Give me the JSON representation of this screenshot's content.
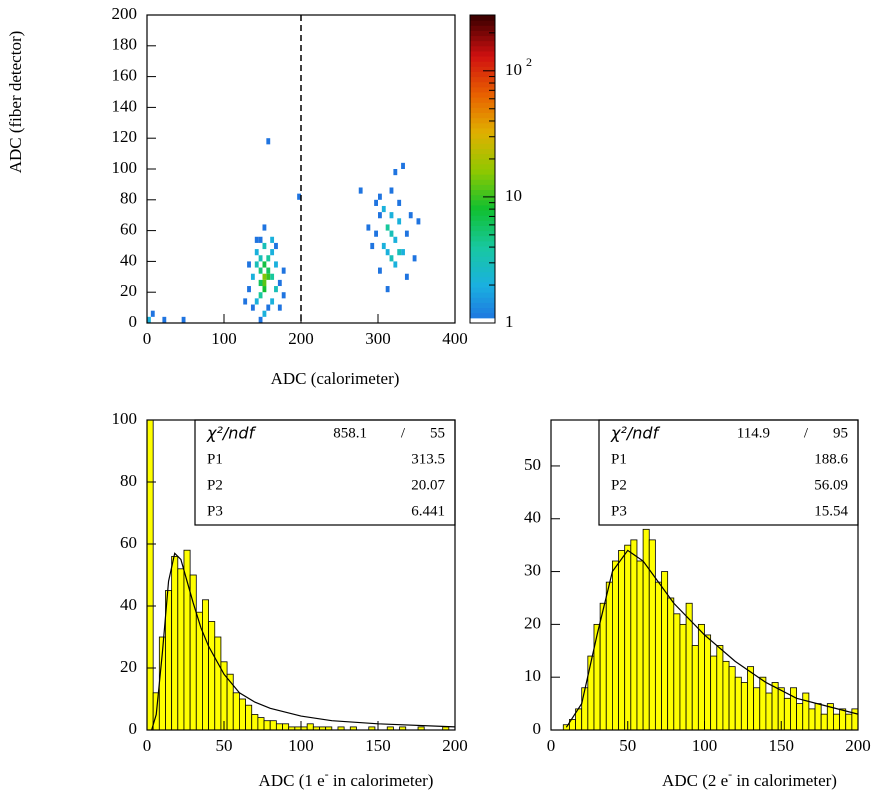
{
  "chart_data": [
    {
      "type": "heatmap",
      "xlabel": "ADC (calorimeter)",
      "ylabel": "ADC (fiber detector)",
      "xlim": [
        0,
        400
      ],
      "ylim": [
        0,
        200
      ],
      "xticks": [
        0,
        100,
        200,
        300,
        400
      ],
      "yticks": [
        0,
        20,
        40,
        60,
        80,
        100,
        120,
        140,
        160,
        180,
        200
      ],
      "xbin": 5,
      "ybin": 4,
      "zlim": [
        1,
        277
      ],
      "zlog": true,
      "zticks": [
        1,
        10,
        {
          "value": 100,
          "label": "10",
          "sup": "2"
        }
      ],
      "palette": [
        "#3a2fd0",
        "#1f6fe0",
        "#1ab0e0",
        "#18c8a0",
        "#10c030",
        "#90c800",
        "#e0b000",
        "#e86000",
        "#d01010",
        "#400000"
      ],
      "vline": 200,
      "cells": [
        [
          135,
          8,
          1
        ],
        [
          140,
          12,
          2
        ],
        [
          145,
          16,
          4
        ],
        [
          150,
          20,
          8
        ],
        [
          150,
          24,
          12
        ],
        [
          145,
          24,
          6
        ],
        [
          155,
          28,
          10
        ],
        [
          150,
          28,
          15
        ],
        [
          145,
          32,
          5
        ],
        [
          155,
          32,
          6
        ],
        [
          150,
          36,
          7
        ],
        [
          145,
          40,
          3
        ],
        [
          155,
          40,
          4
        ],
        [
          140,
          44,
          2
        ],
        [
          160,
          44,
          2
        ],
        [
          150,
          48,
          3
        ],
        [
          145,
          52,
          1
        ],
        [
          160,
          52,
          2
        ],
        [
          130,
          20,
          1
        ],
        [
          135,
          28,
          2
        ],
        [
          165,
          20,
          3
        ],
        [
          160,
          28,
          4
        ],
        [
          165,
          36,
          2
        ],
        [
          170,
          24,
          1
        ],
        [
          175,
          16,
          1
        ],
        [
          140,
          36,
          3
        ],
        [
          160,
          12,
          2
        ],
        [
          155,
          8,
          1
        ],
        [
          150,
          4,
          2
        ],
        [
          145,
          0,
          1
        ],
        [
          170,
          8,
          1
        ],
        [
          150,
          60,
          1
        ],
        [
          155,
          116,
          1
        ],
        [
          140,
          52,
          1
        ],
        [
          130,
          36,
          1
        ],
        [
          165,
          48,
          1
        ],
        [
          175,
          32,
          1
        ],
        [
          125,
          12,
          1
        ],
        [
          310,
          60,
          4
        ],
        [
          315,
          56,
          3
        ],
        [
          320,
          52,
          2
        ],
        [
          305,
          48,
          2
        ],
        [
          325,
          64,
          2
        ],
        [
          300,
          68,
          1
        ],
        [
          330,
          44,
          2
        ],
        [
          315,
          40,
          3
        ],
        [
          320,
          36,
          2
        ],
        [
          310,
          44,
          2
        ],
        [
          295,
          56,
          1
        ],
        [
          335,
          56,
          1
        ],
        [
          305,
          72,
          2
        ],
        [
          325,
          76,
          1
        ],
        [
          315,
          84,
          1
        ],
        [
          300,
          80,
          1
        ],
        [
          290,
          48,
          1
        ],
        [
          340,
          68,
          1
        ],
        [
          285,
          60,
          1
        ],
        [
          345,
          40,
          1
        ],
        [
          320,
          96,
          1
        ],
        [
          330,
          100,
          1
        ],
        [
          275,
          84,
          1
        ],
        [
          350,
          64,
          1
        ],
        [
          300,
          32,
          1
        ],
        [
          310,
          20,
          1
        ],
        [
          335,
          28,
          1
        ],
        [
          295,
          76,
          1
        ],
        [
          325,
          44,
          3
        ],
        [
          315,
          68,
          2
        ],
        [
          0,
          0,
          2
        ],
        [
          5,
          4,
          1
        ],
        [
          20,
          0,
          1
        ],
        [
          45,
          0,
          1
        ],
        [
          195,
          80,
          1
        ]
      ]
    },
    {
      "type": "histogram",
      "xlabel": [
        "ADC (1 e",
        "-",
        " in calorimeter)"
      ],
      "xlim": [
        0,
        200
      ],
      "ylim": [
        0,
        100
      ],
      "xticks": [
        0,
        50,
        100,
        150,
        200
      ],
      "yticks": [
        0,
        20,
        40,
        60,
        80,
        100
      ],
      "color": "#ffff00",
      "bins": [
        0,
        4,
        8,
        12,
        16,
        20,
        24,
        28,
        32,
        36,
        40,
        44,
        48,
        52,
        56,
        60,
        64,
        68,
        72,
        76,
        80,
        84,
        88,
        92,
        96,
        100,
        104,
        108,
        112,
        116,
        120,
        124,
        128,
        132,
        136,
        140,
        144,
        148,
        152,
        156,
        160,
        164,
        168,
        172,
        176,
        180,
        184,
        188,
        192,
        196,
        200
      ],
      "values": [
        100,
        12,
        30,
        45,
        56,
        52,
        58,
        50,
        38,
        42,
        35,
        30,
        22,
        18,
        12,
        10,
        8,
        5,
        4,
        3,
        3,
        2,
        2,
        1,
        1,
        1,
        2,
        1,
        1,
        1,
        0,
        1,
        0,
        1,
        0,
        0,
        1,
        0,
        0,
        1,
        0,
        1,
        0,
        0,
        1,
        0,
        0,
        0,
        1,
        0
      ],
      "fit": {
        "x": [
          3,
          6,
          10,
          14,
          18,
          22,
          26,
          30,
          35,
          40,
          50,
          60,
          70,
          80,
          100,
          120,
          150,
          200
        ],
        "y": [
          0,
          5,
          25,
          48,
          57,
          55,
          48,
          41,
          33,
          27,
          18,
          12,
          9,
          7,
          4.5,
          3,
          2,
          1
        ]
      },
      "stats": [
        [
          "χ²/ndf",
          "858.1",
          "/",
          "55"
        ],
        [
          "P1",
          "313.5"
        ],
        [
          "P2",
          "20.07"
        ],
        [
          "P3",
          "6.441"
        ]
      ]
    },
    {
      "type": "histogram",
      "xlabel": [
        "ADC (2 e",
        "-",
        " in calorimeter)"
      ],
      "xlim": [
        0,
        200
      ],
      "ylim": [
        0,
        58.7
      ],
      "xticks": [
        0,
        50,
        100,
        150,
        200
      ],
      "yticks": [
        0,
        10,
        20,
        30,
        40,
        50
      ],
      "color": "#ffff00",
      "bins": [
        0,
        4,
        8,
        12,
        16,
        20,
        24,
        28,
        32,
        36,
        40,
        44,
        48,
        52,
        56,
        60,
        64,
        68,
        72,
        76,
        80,
        84,
        88,
        92,
        96,
        100,
        104,
        108,
        112,
        116,
        120,
        124,
        128,
        132,
        136,
        140,
        144,
        148,
        152,
        156,
        160,
        164,
        168,
        172,
        176,
        180,
        184,
        188,
        192,
        196,
        200
      ],
      "values": [
        0,
        0,
        1,
        2,
        4,
        8,
        14,
        20,
        24,
        28,
        32,
        34,
        35,
        36,
        32,
        38,
        36,
        28,
        30,
        25,
        22,
        20,
        24,
        16,
        20,
        18,
        14,
        16,
        13,
        12,
        10,
        9,
        12,
        8,
        10,
        7,
        9,
        8,
        6,
        8,
        5,
        7,
        4,
        5,
        3,
        5,
        3,
        4,
        3,
        4
      ],
      "fit": {
        "x": [
          10,
          20,
          30,
          40,
          50,
          60,
          70,
          80,
          100,
          120,
          140,
          160,
          180,
          200
        ],
        "y": [
          0.5,
          5,
          18,
          30,
          34,
          32,
          28,
          24,
          18,
          13,
          9,
          6,
          4.5,
          3
        ]
      },
      "stats": [
        [
          "χ²/ndf",
          "114.9",
          "/",
          "95"
        ],
        [
          "P1",
          "188.6"
        ],
        [
          "P2",
          "56.09"
        ],
        [
          "P3",
          "15.54"
        ]
      ]
    }
  ]
}
